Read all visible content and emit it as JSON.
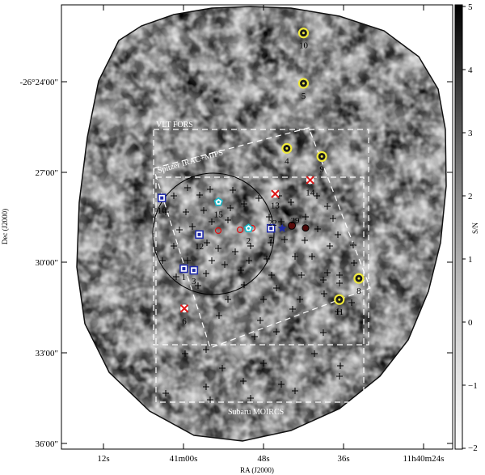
{
  "chart_data": {
    "type": "scatter",
    "xlabel": "RA (J2000)",
    "ylabel": "Dec (J2000)",
    "x_ticks": [
      "12s",
      "41m00s",
      "48s",
      "36s",
      "11h40m24s"
    ],
    "y_ticks": [
      "-26°24'00\"",
      "27'00\"",
      "30'00\"",
      "33'00\"",
      "36'00\""
    ],
    "colorbar": {
      "label": "S/N",
      "ticks": [
        "5",
        "4",
        "3",
        "2",
        "1",
        "0",
        "−1",
        "−2"
      ],
      "range": [
        -2,
        5
      ]
    },
    "instrument_labels": [
      "VLT FORS",
      "Spitzer IRAC+MIPS",
      "Subaru MOIRCS"
    ],
    "sources": [
      {
        "id": "1",
        "marker": "blue-square",
        "ra": 175.2498,
        "dec": -26.515
      },
      {
        "id": "2",
        "marker": "cyan-pentagon",
        "ra": 175.211,
        "dec": -26.4902
      },
      {
        "id": "3",
        "marker": "blue-square",
        "ra": 175.2438,
        "dec": -26.516
      },
      {
        "id": "4",
        "marker": "yellow-circle",
        "ra": 175.188,
        "dec": -26.441
      },
      {
        "id": "5",
        "marker": "yellow-circle",
        "ra": 175.178,
        "dec": -26.401
      },
      {
        "id": "6",
        "marker": "red-x",
        "ra": 175.2495,
        "dec": -26.5395
      },
      {
        "id": "7",
        "marker": "blue-square",
        "ra": 175.1975,
        "dec": -26.4902
      },
      {
        "id": "8",
        "marker": "yellow-circle",
        "ra": 175.1448,
        "dec": -26.521
      },
      {
        "id": "9",
        "marker": "yellow-circle",
        "ra": 175.167,
        "dec": -26.446
      },
      {
        "id": "10",
        "marker": "yellow-circle",
        "ra": 175.178,
        "dec": -26.37
      },
      {
        "id": "11",
        "marker": "yellow-circle",
        "ra": 175.1565,
        "dec": -26.534
      },
      {
        "id": "12",
        "marker": "blue-square",
        "ra": 175.2405,
        "dec": -26.494
      },
      {
        "id": "13",
        "marker": "red-x",
        "ra": 175.195,
        "dec": -26.469
      },
      {
        "id": "14",
        "marker": "red-x",
        "ra": 175.174,
        "dec": -26.4605
      },
      {
        "id": "15",
        "marker": "cyan-pentagon",
        "ra": 175.229,
        "dec": -26.474
      },
      {
        "id": "16",
        "marker": "blue-square",
        "ra": 175.263,
        "dec": -26.4715
      },
      {
        "id": "22",
        "marker": "blue-star",
        "ra": 175.1908,
        "dec": -26.4902
      },
      {
        "id": "29",
        "marker": "dark-red-dot",
        "ra": 175.185,
        "dec": -26.4885
      }
    ]
  }
}
